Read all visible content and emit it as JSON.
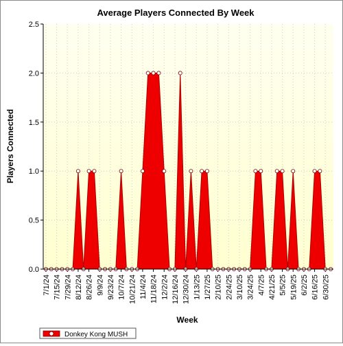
{
  "chart_data": {
    "type": "area",
    "title": "Average Players Connected By Week",
    "xlabel": "Week",
    "ylabel": "Players Connected",
    "ylim": [
      0,
      2.5
    ],
    "yticks": [
      "0.0",
      "0.5",
      "1.0",
      "1.5",
      "2.0",
      "2.5"
    ],
    "x_tick_labels": [
      "7/1/24",
      "7/15/24",
      "7/29/24",
      "8/12/24",
      "8/26/24",
      "9/9/24",
      "9/23/24",
      "10/7/24",
      "10/21/24",
      "11/4/24",
      "11/18/24",
      "12/2/24",
      "12/16/24",
      "12/30/24",
      "1/13/25",
      "1/27/25",
      "2/10/25",
      "2/24/25",
      "3/10/25",
      "3/24/25",
      "4/7/25",
      "4/21/25",
      "5/5/25",
      "5/19/25",
      "6/2/25",
      "6/16/25",
      "6/30/25"
    ],
    "grid": true,
    "legend_position": "bottom-left",
    "colors": {
      "series": "#ee0000",
      "plot_bg_top": "#fffff0",
      "plot_bg_bottom": "#ffffd0",
      "grid": "#cccccc"
    },
    "series": [
      {
        "name": "Donkey Kong MUSH",
        "values": [
          0,
          0,
          0,
          0,
          0,
          0,
          1,
          0,
          1,
          1,
          0,
          0,
          0,
          0,
          1,
          0,
          0,
          0,
          1,
          2,
          2,
          2,
          1,
          0,
          0,
          2,
          0,
          1,
          0,
          1,
          1,
          0,
          0,
          0,
          0,
          0,
          0,
          0,
          0,
          1,
          1,
          0,
          0,
          1,
          1,
          0,
          1,
          0,
          0,
          0,
          1,
          1,
          0,
          0
        ]
      }
    ]
  }
}
